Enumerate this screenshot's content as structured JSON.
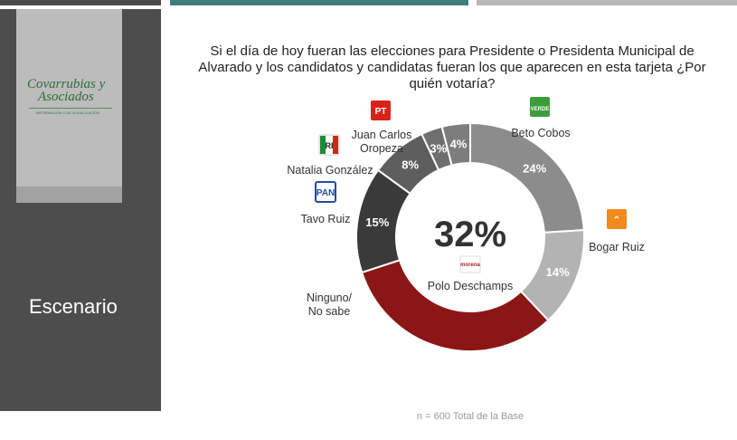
{
  "brand": {
    "logo_line1": "Covarrubias y",
    "logo_line2": "Asociados",
    "tagline": "INFORMACIÓN CON VISUALIZACIÓN"
  },
  "sidebar": {
    "label": "Escenario"
  },
  "question": "Si el día de hoy fueran las elecciones para Presidente o Presidenta Municipal de Alvarado y los candidatos y candidatas fueran los que aparecen en esta tarjeta ¿Por quién votaría?",
  "footnote": "n = 600 Total de la Base",
  "chart_data": {
    "type": "pie",
    "variant": "donut",
    "center": {
      "value": "32%",
      "label": "Polo Deschamps"
    },
    "slices": [
      {
        "label": "Beto Cobos",
        "value": 24,
        "display": "24%",
        "color": "#8c8c8c",
        "party": "VERDE",
        "party_color": "#3c9c3c"
      },
      {
        "label": "Bogar Ruiz",
        "value": 14,
        "display": "14%",
        "color": "#b3b3b3",
        "party": "MC",
        "party_color": "#f08a1c"
      },
      {
        "label": "Polo Deschamps",
        "value": 32,
        "display": "",
        "color": "#8b1616",
        "party": "morena",
        "party_color": "#a4262c"
      },
      {
        "label": "Ninguno/ No sabe",
        "value": 15,
        "display": "15%",
        "color": "#3a3a3a",
        "party": "",
        "party_color": ""
      },
      {
        "label": "Tavo Ruiz",
        "value": 8,
        "display": "8%",
        "color": "#5e5e5e",
        "party": "PAN",
        "party_color": "#1f4f9c"
      },
      {
        "label": "Natalia González",
        "value": 3,
        "display": "3%",
        "color": "#6f6f6f",
        "party": "PRI",
        "party_color": "#1c8c3c"
      },
      {
        "label": "Juan Carlos Oropeza",
        "value": 4,
        "display": "4%",
        "color": "#7d7d7d",
        "party": "PT",
        "party_color": "#d8231a"
      }
    ]
  }
}
